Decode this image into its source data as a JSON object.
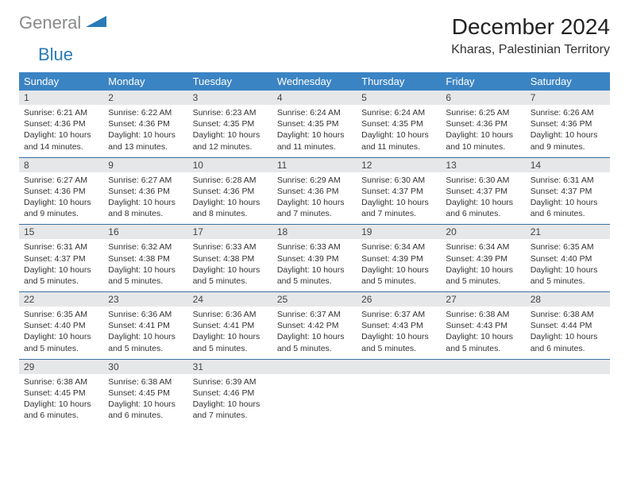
{
  "brand": {
    "part1": "General",
    "part2": "Blue"
  },
  "title": "December 2024",
  "location": "Kharas, Palestinian Territory",
  "colors": {
    "header_bg": "#3b84c4",
    "daynum_bg": "#e6e7e9",
    "row_border": "#3b6fa0",
    "logo_grey": "#888a8c",
    "logo_blue": "#2a7ab8"
  },
  "weekdays": [
    "Sunday",
    "Monday",
    "Tuesday",
    "Wednesday",
    "Thursday",
    "Friday",
    "Saturday"
  ],
  "weeks": [
    [
      {
        "day": "1",
        "sunrise": "Sunrise: 6:21 AM",
        "sunset": "Sunset: 4:36 PM",
        "daylight": "Daylight: 10 hours and 14 minutes."
      },
      {
        "day": "2",
        "sunrise": "Sunrise: 6:22 AM",
        "sunset": "Sunset: 4:36 PM",
        "daylight": "Daylight: 10 hours and 13 minutes."
      },
      {
        "day": "3",
        "sunrise": "Sunrise: 6:23 AM",
        "sunset": "Sunset: 4:35 PM",
        "daylight": "Daylight: 10 hours and 12 minutes."
      },
      {
        "day": "4",
        "sunrise": "Sunrise: 6:24 AM",
        "sunset": "Sunset: 4:35 PM",
        "daylight": "Daylight: 10 hours and 11 minutes."
      },
      {
        "day": "5",
        "sunrise": "Sunrise: 6:24 AM",
        "sunset": "Sunset: 4:35 PM",
        "daylight": "Daylight: 10 hours and 11 minutes."
      },
      {
        "day": "6",
        "sunrise": "Sunrise: 6:25 AM",
        "sunset": "Sunset: 4:36 PM",
        "daylight": "Daylight: 10 hours and 10 minutes."
      },
      {
        "day": "7",
        "sunrise": "Sunrise: 6:26 AM",
        "sunset": "Sunset: 4:36 PM",
        "daylight": "Daylight: 10 hours and 9 minutes."
      }
    ],
    [
      {
        "day": "8",
        "sunrise": "Sunrise: 6:27 AM",
        "sunset": "Sunset: 4:36 PM",
        "daylight": "Daylight: 10 hours and 9 minutes."
      },
      {
        "day": "9",
        "sunrise": "Sunrise: 6:27 AM",
        "sunset": "Sunset: 4:36 PM",
        "daylight": "Daylight: 10 hours and 8 minutes."
      },
      {
        "day": "10",
        "sunrise": "Sunrise: 6:28 AM",
        "sunset": "Sunset: 4:36 PM",
        "daylight": "Daylight: 10 hours and 8 minutes."
      },
      {
        "day": "11",
        "sunrise": "Sunrise: 6:29 AM",
        "sunset": "Sunset: 4:36 PM",
        "daylight": "Daylight: 10 hours and 7 minutes."
      },
      {
        "day": "12",
        "sunrise": "Sunrise: 6:30 AM",
        "sunset": "Sunset: 4:37 PM",
        "daylight": "Daylight: 10 hours and 7 minutes."
      },
      {
        "day": "13",
        "sunrise": "Sunrise: 6:30 AM",
        "sunset": "Sunset: 4:37 PM",
        "daylight": "Daylight: 10 hours and 6 minutes."
      },
      {
        "day": "14",
        "sunrise": "Sunrise: 6:31 AM",
        "sunset": "Sunset: 4:37 PM",
        "daylight": "Daylight: 10 hours and 6 minutes."
      }
    ],
    [
      {
        "day": "15",
        "sunrise": "Sunrise: 6:31 AM",
        "sunset": "Sunset: 4:37 PM",
        "daylight": "Daylight: 10 hours and 5 minutes."
      },
      {
        "day": "16",
        "sunrise": "Sunrise: 6:32 AM",
        "sunset": "Sunset: 4:38 PM",
        "daylight": "Daylight: 10 hours and 5 minutes."
      },
      {
        "day": "17",
        "sunrise": "Sunrise: 6:33 AM",
        "sunset": "Sunset: 4:38 PM",
        "daylight": "Daylight: 10 hours and 5 minutes."
      },
      {
        "day": "18",
        "sunrise": "Sunrise: 6:33 AM",
        "sunset": "Sunset: 4:39 PM",
        "daylight": "Daylight: 10 hours and 5 minutes."
      },
      {
        "day": "19",
        "sunrise": "Sunrise: 6:34 AM",
        "sunset": "Sunset: 4:39 PM",
        "daylight": "Daylight: 10 hours and 5 minutes."
      },
      {
        "day": "20",
        "sunrise": "Sunrise: 6:34 AM",
        "sunset": "Sunset: 4:39 PM",
        "daylight": "Daylight: 10 hours and 5 minutes."
      },
      {
        "day": "21",
        "sunrise": "Sunrise: 6:35 AM",
        "sunset": "Sunset: 4:40 PM",
        "daylight": "Daylight: 10 hours and 5 minutes."
      }
    ],
    [
      {
        "day": "22",
        "sunrise": "Sunrise: 6:35 AM",
        "sunset": "Sunset: 4:40 PM",
        "daylight": "Daylight: 10 hours and 5 minutes."
      },
      {
        "day": "23",
        "sunrise": "Sunrise: 6:36 AM",
        "sunset": "Sunset: 4:41 PM",
        "daylight": "Daylight: 10 hours and 5 minutes."
      },
      {
        "day": "24",
        "sunrise": "Sunrise: 6:36 AM",
        "sunset": "Sunset: 4:41 PM",
        "daylight": "Daylight: 10 hours and 5 minutes."
      },
      {
        "day": "25",
        "sunrise": "Sunrise: 6:37 AM",
        "sunset": "Sunset: 4:42 PM",
        "daylight": "Daylight: 10 hours and 5 minutes."
      },
      {
        "day": "26",
        "sunrise": "Sunrise: 6:37 AM",
        "sunset": "Sunset: 4:43 PM",
        "daylight": "Daylight: 10 hours and 5 minutes."
      },
      {
        "day": "27",
        "sunrise": "Sunrise: 6:38 AM",
        "sunset": "Sunset: 4:43 PM",
        "daylight": "Daylight: 10 hours and 5 minutes."
      },
      {
        "day": "28",
        "sunrise": "Sunrise: 6:38 AM",
        "sunset": "Sunset: 4:44 PM",
        "daylight": "Daylight: 10 hours and 6 minutes."
      }
    ],
    [
      {
        "day": "29",
        "sunrise": "Sunrise: 6:38 AM",
        "sunset": "Sunset: 4:45 PM",
        "daylight": "Daylight: 10 hours and 6 minutes."
      },
      {
        "day": "30",
        "sunrise": "Sunrise: 6:38 AM",
        "sunset": "Sunset: 4:45 PM",
        "daylight": "Daylight: 10 hours and 6 minutes."
      },
      {
        "day": "31",
        "sunrise": "Sunrise: 6:39 AM",
        "sunset": "Sunset: 4:46 PM",
        "daylight": "Daylight: 10 hours and 7 minutes."
      },
      null,
      null,
      null,
      null
    ]
  ]
}
